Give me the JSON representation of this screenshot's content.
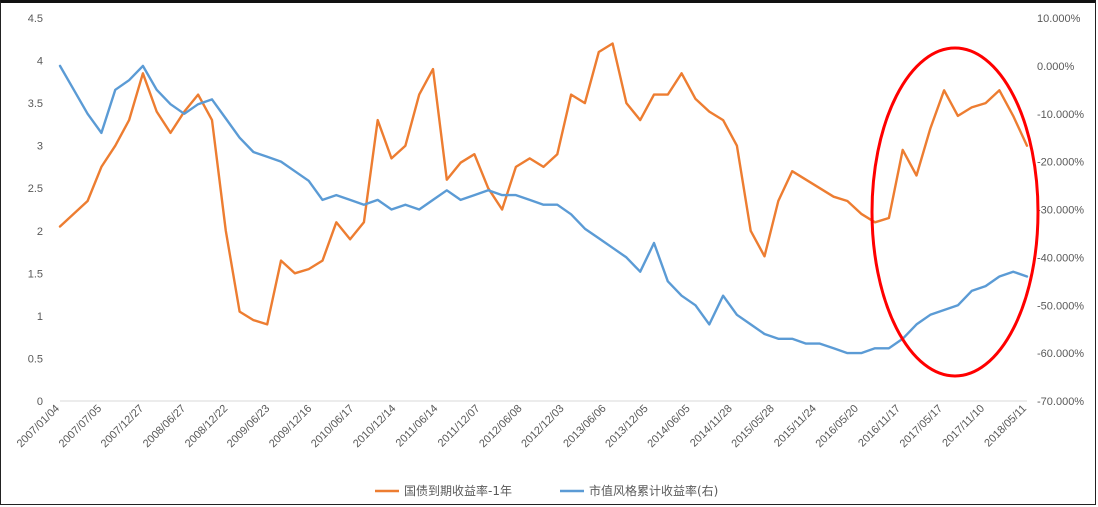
{
  "chart_data": {
    "type": "line",
    "y_left": {
      "min": 0,
      "max": 4.5,
      "ticks": [
        "0",
        "0.5",
        "1",
        "1.5",
        "2",
        "2.5",
        "3",
        "3.5",
        "4",
        "4.5"
      ]
    },
    "y_right": {
      "min": -70,
      "max": 10,
      "ticks": [
        "-70.000%",
        "-60.000%",
        "-50.000%",
        "-40.000%",
        "-30.000%",
        "-20.000%",
        "-10.000%",
        "0.000%",
        "10.000%"
      ]
    },
    "x_labels": [
      "2007/01/04",
      "2007/07/05",
      "2007/12/27",
      "2008/06/27",
      "2008/12/22",
      "2009/06/23",
      "2009/12/16",
      "2010/06/17",
      "2010/12/14",
      "2011/06/14",
      "2011/12/07",
      "2012/06/08",
      "2012/12/03",
      "2013/06/06",
      "2013/12/05",
      "2014/06/05",
      "2014/11/28",
      "2015/05/28",
      "2015/11/24",
      "2016/05/20",
      "2016/11/17",
      "2017/05/17",
      "2017/11/10",
      "2018/05/11"
    ],
    "grid": false,
    "legend_position": "bottom",
    "series": [
      {
        "name": "国债到期收益率-1年",
        "axis": "left",
        "color": "#ED7D31",
        "values": [
          2.05,
          2.2,
          2.35,
          2.75,
          3.0,
          3.3,
          3.85,
          3.4,
          3.15,
          3.4,
          3.6,
          3.3,
          2.0,
          1.05,
          0.95,
          0.9,
          1.65,
          1.5,
          1.55,
          1.65,
          2.1,
          1.9,
          2.1,
          3.3,
          2.85,
          3.0,
          3.6,
          3.9,
          2.6,
          2.8,
          2.9,
          2.5,
          2.25,
          2.75,
          2.85,
          2.75,
          2.9,
          3.6,
          3.5,
          4.1,
          4.2,
          3.5,
          3.3,
          3.6,
          3.6,
          3.85,
          3.55,
          3.4,
          3.3,
          3.0,
          2.0,
          1.7,
          2.35,
          2.7,
          2.6,
          2.5,
          2.4,
          2.35,
          2.2,
          2.1,
          2.15,
          2.95,
          2.65,
          3.2,
          3.65,
          3.35,
          3.45,
          3.5,
          3.65,
          3.35,
          3.0
        ]
      },
      {
        "name": "市值风格累计收益率(右)",
        "axis": "right",
        "color": "#5B9BD5",
        "values": [
          0,
          -5,
          -10,
          -14,
          -5,
          -3,
          0,
          -5,
          -8,
          -10,
          -8,
          -7,
          -11,
          -15,
          -18,
          -19,
          -20,
          -22,
          -24,
          -28,
          -27,
          -28,
          -29,
          -28,
          -30,
          -29,
          -30,
          -28,
          -26,
          -28,
          -27,
          -26,
          -27,
          -27,
          -28,
          -29,
          -29,
          -31,
          -34,
          -36,
          -38,
          -40,
          -43,
          -37,
          -45,
          -48,
          -50,
          -54,
          -48,
          -52,
          -54,
          -56,
          -57,
          -57,
          -58,
          -58,
          -59,
          -60,
          -60,
          -59,
          -59,
          -57,
          -54,
          -52,
          -51,
          -50,
          -47,
          -46,
          -44,
          -43,
          -44
        ]
      }
    ],
    "annotation": {
      "type": "ellipse",
      "color": "#FF0000"
    }
  }
}
